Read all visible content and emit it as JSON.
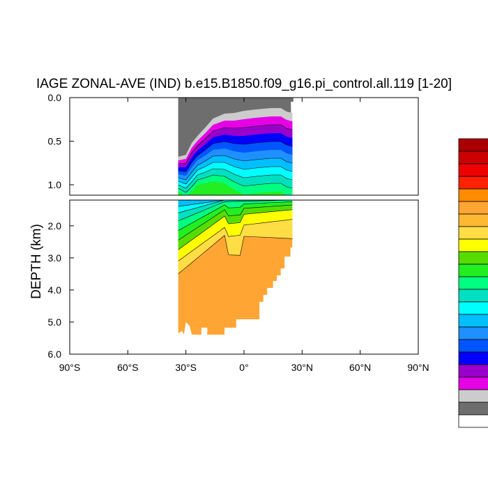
{
  "chart_data": {
    "type": "heatmap",
    "title": "IAGE ZONAL-AVE (IND) b.e15.B1850.f09_g16.pi_control.all.119 [1-20]",
    "ylabel": "DEPTH (km)",
    "xlabel": "",
    "x_ticks": [
      "90°S",
      "60°S",
      "30°S",
      "0°",
      "30°N",
      "60°N",
      "90°N"
    ],
    "x_tick_values": [
      -90,
      -60,
      -30,
      0,
      30,
      60,
      90
    ],
    "xlim": [
      -90,
      90
    ],
    "upper_panel": {
      "ylim": [
        0.0,
        1.12
      ],
      "y_ticks": [
        "0.0",
        "0.5",
        "1.0"
      ],
      "y_tick_values": [
        0.0,
        0.5,
        1.0
      ]
    },
    "lower_panel": {
      "ylim": [
        1.2,
        6.0
      ],
      "y_ticks": [
        "2.0",
        "3.0",
        "4.0",
        "5.0",
        "6.0"
      ],
      "y_tick_values": [
        2.0,
        3.0,
        4.0,
        5.0,
        6.0
      ]
    },
    "data_lon_range": [
      -34,
      25
    ],
    "level_colors": [
      "#ffffff",
      "#6e6e6e",
      "#cccccc",
      "#e600e6",
      "#9900cc",
      "#0000ff",
      "#0055ff",
      "#1e90ff",
      "#00bfff",
      "#00ffff",
      "#00e0c0",
      "#00ff80",
      "#22ee22",
      "#55dd00",
      "#ffff00",
      "#ffdd44",
      "#ffb833",
      "#ffa533",
      "#ff8c00",
      "#ff2200",
      "#ee0000",
      "#cc0000",
      "#aa0000"
    ],
    "filled_levels_in_plot": [
      1,
      2,
      3,
      4,
      5,
      6,
      7,
      8,
      9,
      10,
      11,
      12,
      13,
      14,
      15,
      16,
      17
    ],
    "colorbar": {
      "placement": "right",
      "labels_visible": false
    },
    "grid": false
  }
}
